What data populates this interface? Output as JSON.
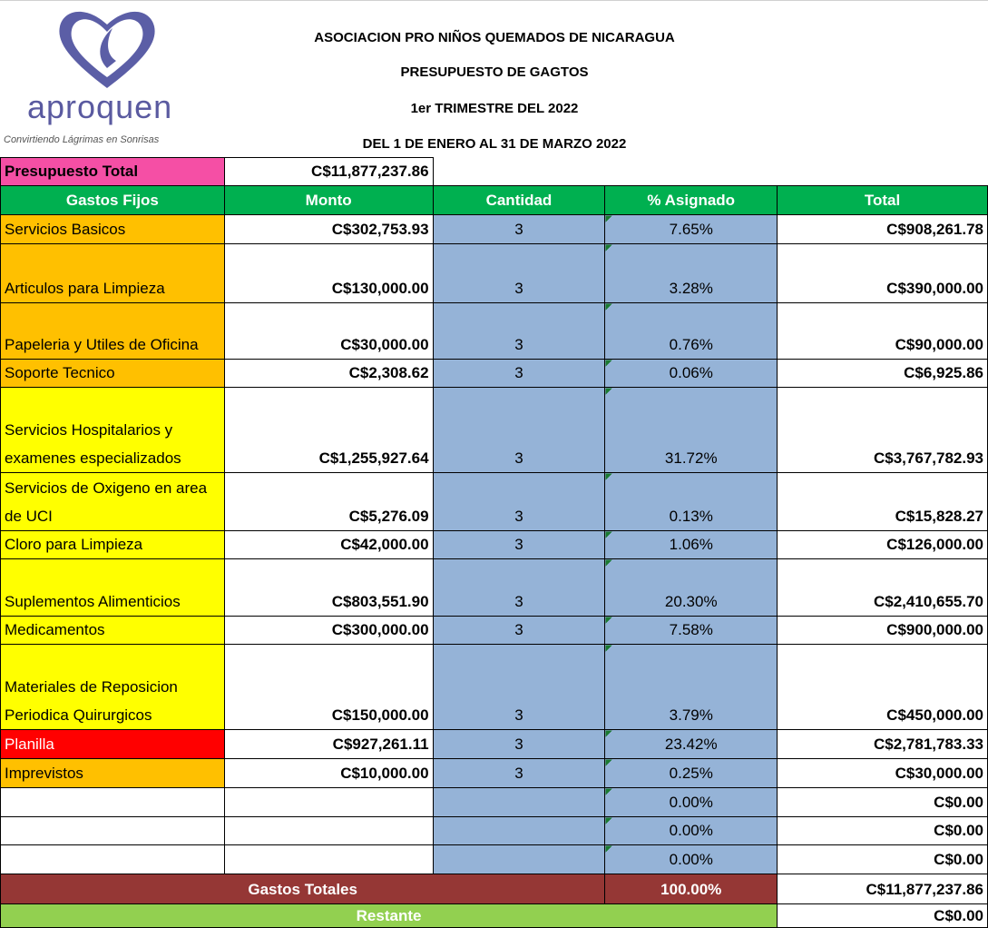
{
  "header": {
    "logo_name": "aproquen",
    "logo_tagline": "Convirtiendo Lágrimas en Sonrisas",
    "titles": [
      "ASOCIACION PRO NIÑOS QUEMADOS DE NICARAGUA",
      "PRESUPUESTO DE GAGTOS",
      "1er TRIMESTRE DEL 2022",
      "DEL 1 DE ENERO AL 31 DE MARZO 2022"
    ]
  },
  "budget": {
    "label": "Presupuesto Total",
    "value": "C$11,877,237.86",
    "color": "#f54fa5"
  },
  "table": {
    "header_color": "#00b050",
    "columns": [
      "Gastos Fijos",
      "Monto",
      "Cantidad",
      "% Asignado",
      "Total"
    ],
    "rows": [
      {
        "color": "#ffc000",
        "cells": [
          "Servicios Basicos",
          "C$302,753.93",
          "3",
          "7.65%",
          "C$908,261.78"
        ]
      },
      {
        "color": "#ffc000",
        "cells": [
          "Articulos para Limpieza",
          "C$130,000.00",
          "3",
          "3.28%",
          "C$390,000.00"
        ]
      },
      {
        "color": "#ffc000",
        "cells": [
          "Papeleria y Utiles de Oficina",
          "C$30,000.00",
          "3",
          "0.76%",
          "C$90,000.00"
        ]
      },
      {
        "color": "#ffc000",
        "cells": [
          "Soporte Tecnico",
          "C$2,308.62",
          "3",
          "0.06%",
          "C$6,925.86"
        ]
      },
      {
        "color": "#ffff00",
        "cells": [
          "Servicios Hospitalarios y examenes especializados",
          "C$1,255,927.64",
          "3",
          "31.72%",
          "C$3,767,782.93"
        ]
      },
      {
        "color": "#ffff00",
        "cells": [
          "Servicios de Oxigeno en area de UCI",
          "C$5,276.09",
          "3",
          "0.13%",
          "C$15,828.27"
        ]
      },
      {
        "color": "#ffff00",
        "cells": [
          "Cloro para Limpieza",
          "C$42,000.00",
          "3",
          "1.06%",
          "C$126,000.00"
        ]
      },
      {
        "color": "#ffff00",
        "cells": [
          "Suplementos Alimenticios",
          "C$803,551.90",
          "3",
          "20.30%",
          "C$2,410,655.70"
        ]
      },
      {
        "color": "#ffff00",
        "cells": [
          "Medicamentos",
          "C$300,000.00",
          "3",
          "7.58%",
          "C$900,000.00"
        ]
      },
      {
        "color": "#ffff00",
        "cells": [
          "Materiales de Reposicion Periodica Quirurgicos",
          "C$150,000.00",
          "3",
          "3.79%",
          "C$450,000.00"
        ]
      },
      {
        "color": "#ff0000",
        "cells": [
          "Planilla",
          "C$927,261.11",
          "3",
          "23.42%",
          "C$2,781,783.33"
        ]
      },
      {
        "color": "#ffc000",
        "cells": [
          "Imprevistos",
          "C$10,000.00",
          "3",
          "0.25%",
          "C$30,000.00"
        ]
      },
      {
        "color": null,
        "cells": [
          null,
          null,
          null,
          "0.00%",
          "C$0.00"
        ]
      },
      {
        "color": null,
        "cells": [
          null,
          null,
          null,
          "0.00%",
          "C$0.00"
        ]
      },
      {
        "color": null,
        "cells": [
          null,
          null,
          null,
          "0.00%",
          "C$0.00"
        ]
      }
    ],
    "totals": {
      "label": "Gastos Totales",
      "pct": "100.00%",
      "total": "C$11,877,237.86",
      "color": "#953735"
    },
    "remaining": {
      "label": "Restante",
      "total": "C$0.00",
      "color": "#92d050"
    }
  }
}
